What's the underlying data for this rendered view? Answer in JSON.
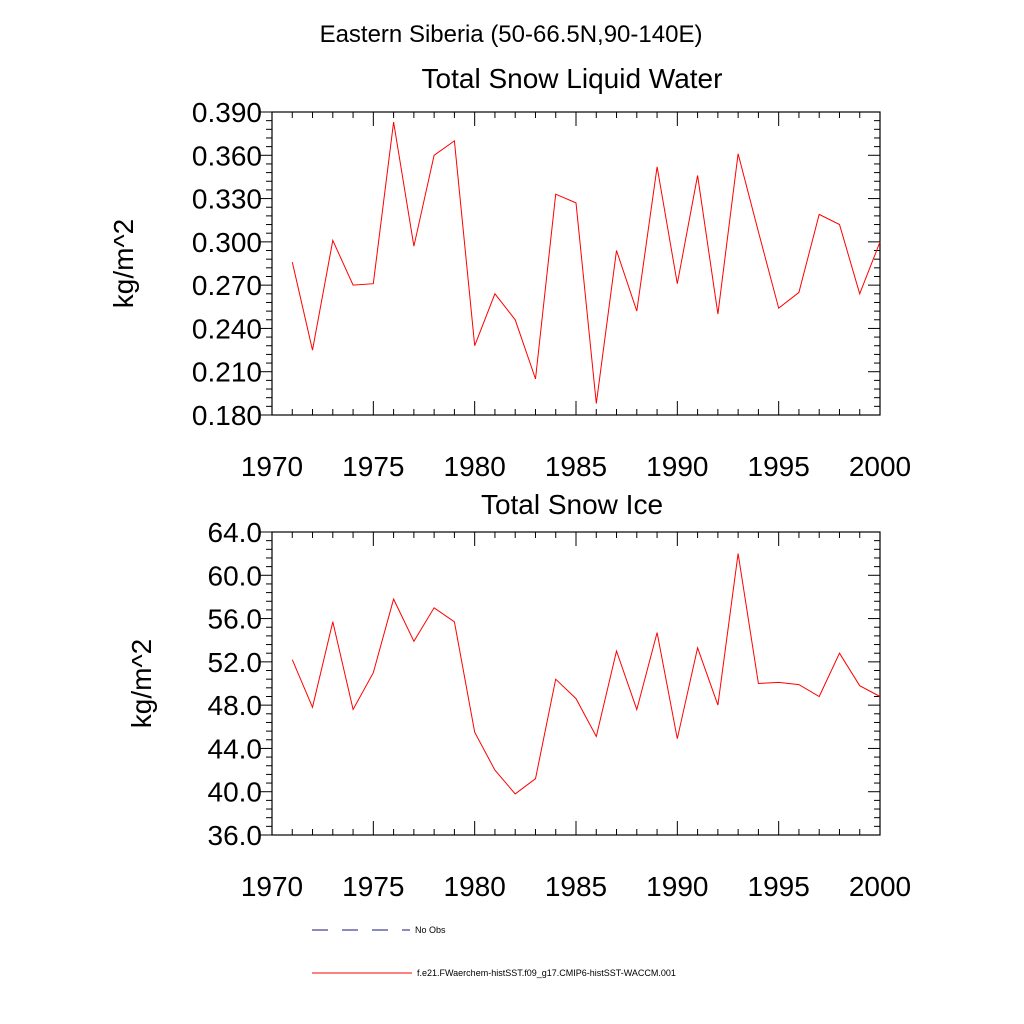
{
  "page_title": "Eastern Siberia (50-66.5N,90-140E)",
  "legend": [
    {
      "label": "No Obs",
      "color": "#1a1a7a",
      "style": "dashed"
    },
    {
      "label": "f.e21.FWaerchem-histSST.f09_g17.CMIP6-histSST-WACCM.001",
      "color": "#ff0000",
      "style": "solid"
    }
  ],
  "chart_data": [
    {
      "type": "line",
      "title": "Total Snow Liquid Water",
      "xlabel": "",
      "ylabel": "kg/m^2",
      "xlim": [
        1970,
        2000
      ],
      "ylim": [
        0.18,
        0.39
      ],
      "xticks": [
        1970,
        1975,
        1980,
        1985,
        1990,
        1995,
        2000
      ],
      "yticks": [
        0.18,
        0.21,
        0.24,
        0.27,
        0.3,
        0.33,
        0.36,
        0.39
      ],
      "ytick_labels": [
        "0.180",
        "0.210",
        "0.240",
        "0.270",
        "0.300",
        "0.330",
        "0.360",
        "0.390"
      ],
      "color": "#ff0000",
      "x": [
        1971,
        1972,
        1973,
        1974,
        1975,
        1976,
        1977,
        1978,
        1979,
        1980,
        1981,
        1982,
        1983,
        1984,
        1985,
        1986,
        1987,
        1988,
        1989,
        1990,
        1991,
        1992,
        1993,
        1994,
        1995,
        1996,
        1997,
        1998,
        1999,
        2000
      ],
      "y": [
        0.286,
        0.225,
        0.301,
        0.27,
        0.271,
        0.383,
        0.297,
        0.36,
        0.37,
        0.228,
        0.264,
        0.246,
        0.205,
        0.333,
        0.327,
        0.188,
        0.294,
        0.252,
        0.352,
        0.271,
        0.346,
        0.25,
        0.361,
        0.307,
        0.254,
        0.265,
        0.319,
        0.312,
        0.264,
        0.3
      ]
    },
    {
      "type": "line",
      "title": "Total Snow Ice",
      "xlabel": "",
      "ylabel": "kg/m^2",
      "xlim": [
        1970,
        2000
      ],
      "ylim": [
        36.0,
        64.0
      ],
      "xticks": [
        1970,
        1975,
        1980,
        1985,
        1990,
        1995,
        2000
      ],
      "yticks": [
        36,
        40,
        44,
        48,
        52,
        56,
        60,
        64
      ],
      "ytick_labels": [
        "36.0",
        "40.0",
        "44.0",
        "48.0",
        "52.0",
        "56.0",
        "60.0",
        "64.0"
      ],
      "color": "#ff0000",
      "x": [
        1971,
        1972,
        1973,
        1974,
        1975,
        1976,
        1977,
        1978,
        1979,
        1980,
        1981,
        1982,
        1983,
        1984,
        1985,
        1986,
        1987,
        1988,
        1989,
        1990,
        1991,
        1992,
        1993,
        1994,
        1995,
        1996,
        1997,
        1998,
        1999,
        2000
      ],
      "y": [
        52.2,
        47.8,
        55.7,
        47.6,
        51.0,
        57.8,
        53.9,
        57.0,
        55.7,
        45.5,
        42.0,
        39.8,
        41.2,
        50.4,
        48.6,
        45.1,
        53.0,
        47.6,
        54.7,
        44.9,
        53.3,
        48.0,
        62.0,
        50.0,
        50.1,
        49.9,
        48.8,
        52.8,
        49.8,
        48.8
      ]
    }
  ]
}
